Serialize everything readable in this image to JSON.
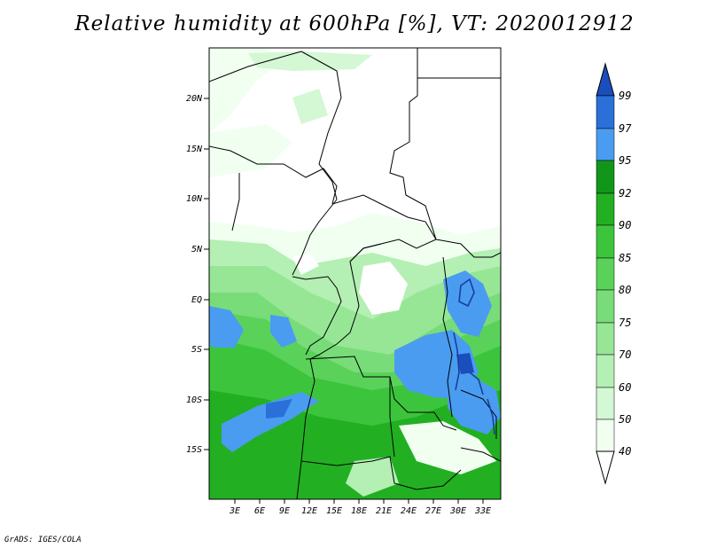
{
  "title": "Relative humidity at 600hPa [%], VT: 2020012912",
  "credit": "GrADS: IGES/COLA",
  "colors": {
    "c40": "#f0fff0",
    "c50": "#d4f7d4",
    "c60": "#b4efb4",
    "c70": "#96e696",
    "c75": "#78dc78",
    "c80": "#5ad25a",
    "c85": "#3cc53c",
    "c90": "#22b022",
    "c92": "#12961a",
    "c95": "#4a9cf0",
    "c97": "#2a70d8",
    "c99": "#1a4ebc",
    "border": "#000000"
  },
  "map": {
    "lat_labels": [
      "20N",
      "15N",
      "10N",
      "5N",
      "EQ",
      "5S",
      "10S",
      "15S"
    ],
    "lon_labels": [
      "3E",
      "6E",
      "9E",
      "12E",
      "15E",
      "18E",
      "21E",
      "24E",
      "27E",
      "30E",
      "33E"
    ]
  },
  "colorbar": {
    "levels": [
      "99",
      "97",
      "95",
      "92",
      "90",
      "85",
      "80",
      "75",
      "70",
      "60",
      "50",
      "40"
    ],
    "colors": [
      "#1a4ebc",
      "#2a70d8",
      "#4a9cf0",
      "#12961a",
      "#22b022",
      "#3cc53c",
      "#5ad25a",
      "#78dc78",
      "#96e696",
      "#b4efb4",
      "#d4f7d4",
      "#f0fff0",
      "#ffffff"
    ]
  }
}
